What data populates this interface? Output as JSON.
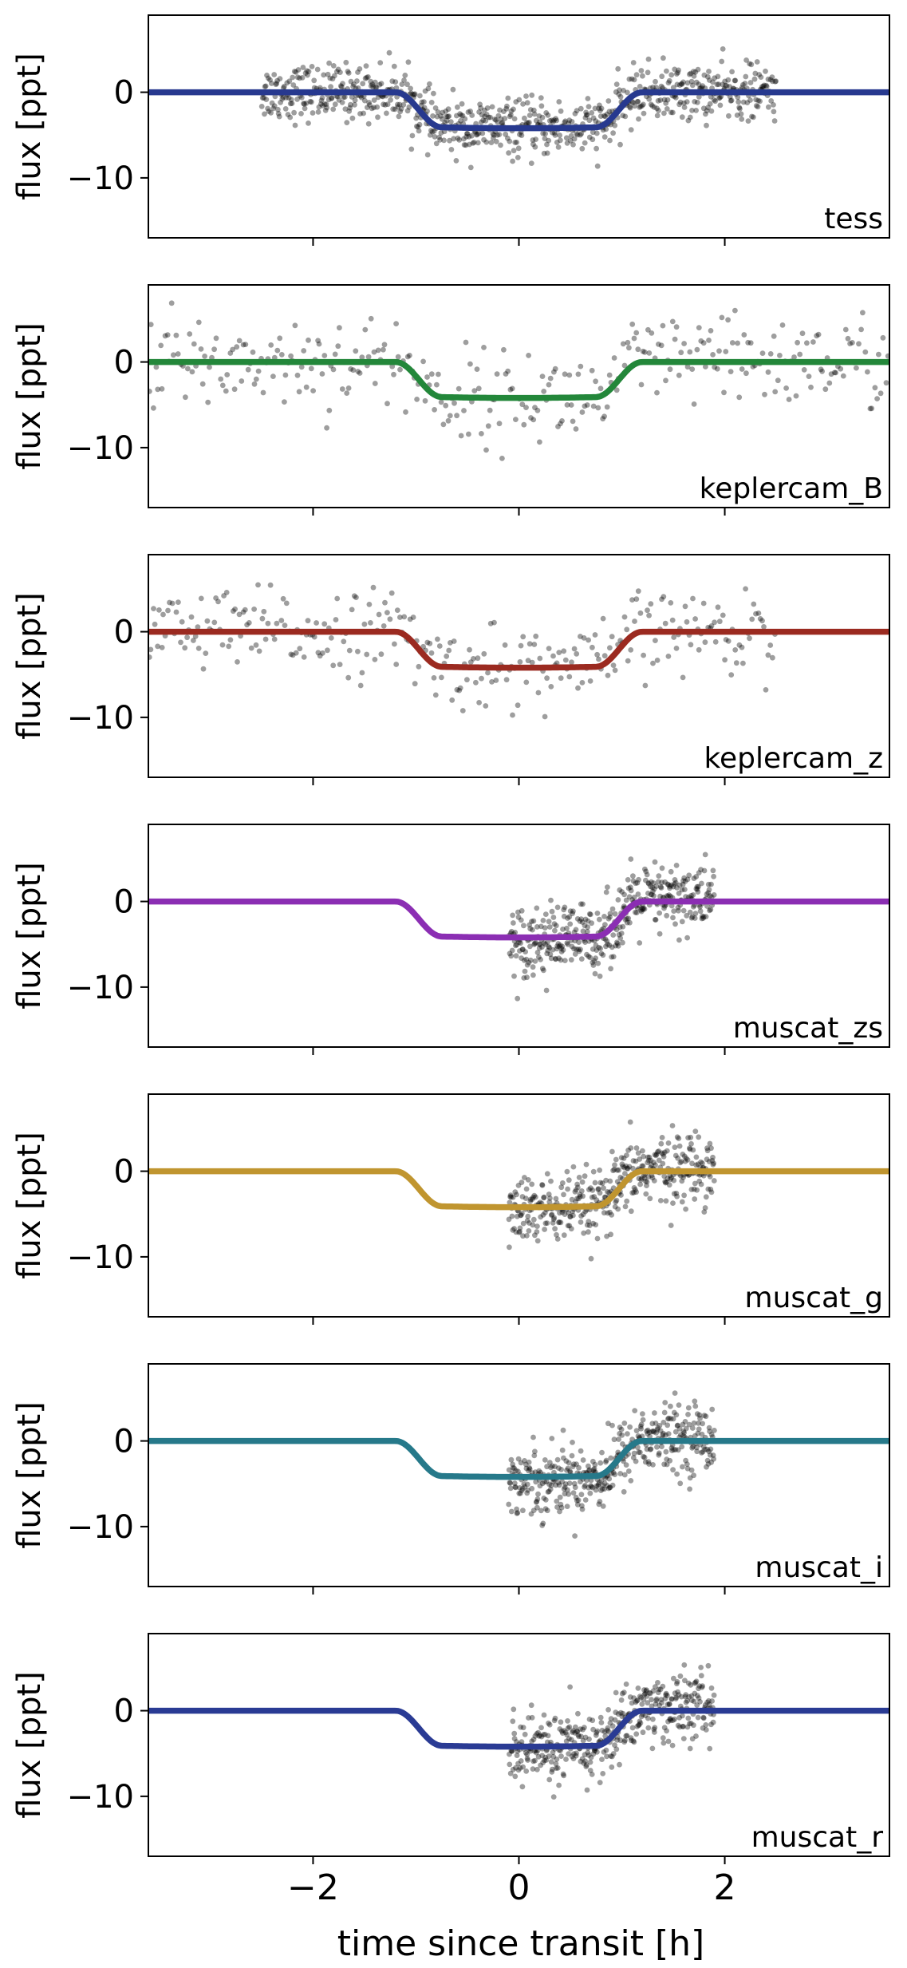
{
  "chart_data": {
    "type": "scatter",
    "layout": "7 stacked panels sharing x-axis",
    "xlabel": "time since transit [h]",
    "ylabel": "flux [ppt]",
    "xlim": [
      -3.6,
      3.6
    ],
    "ylim": [
      -17,
      9
    ],
    "xticks": [
      -2,
      0,
      2
    ],
    "xtick_labels": [
      "−2",
      "0",
      "2"
    ],
    "yticks": [
      0,
      -10
    ],
    "ytick_labels": [
      "0",
      "−10"
    ],
    "point_color": "#000000",
    "model": {
      "transit_depth_ppt": -4.2,
      "t1": -1.2,
      "t2": -0.75,
      "t3": 0.75,
      "t4": 1.2
    },
    "panels": [
      {
        "name": "tess",
        "model_color": "#27398f",
        "data_range": [
          -2.5,
          2.5
        ],
        "n_points": 800,
        "scatter_ppt": 1.6,
        "trend_ppt": 0
      },
      {
        "name": "keplercam_B",
        "model_color": "#23873a",
        "data_range": [
          -3.6,
          3.6
        ],
        "n_points": 330,
        "scatter_ppt": 2.7,
        "trend_ppt": 0
      },
      {
        "name": "keplercam_z",
        "model_color": "#9b2a20",
        "data_range": [
          -3.6,
          2.5
        ],
        "n_points": 300,
        "scatter_ppt": 2.4,
        "trend_ppt": 0
      },
      {
        "name": "muscat_zs",
        "model_color": "#8b2eb3",
        "data_range": [
          -0.1,
          1.9
        ],
        "n_points": 420,
        "scatter_ppt": 2.0,
        "trend_ppt": 3.0
      },
      {
        "name": "muscat_g",
        "model_color": "#c0952f",
        "data_range": [
          -0.1,
          1.9
        ],
        "n_points": 420,
        "scatter_ppt": 2.0,
        "trend_ppt": 3.0
      },
      {
        "name": "muscat_i",
        "model_color": "#26798a",
        "data_range": [
          -0.1,
          1.9
        ],
        "n_points": 420,
        "scatter_ppt": 2.0,
        "trend_ppt": 3.0
      },
      {
        "name": "muscat_r",
        "model_color": "#2a3b94",
        "data_range": [
          -0.1,
          1.9
        ],
        "n_points": 420,
        "scatter_ppt": 2.0,
        "trend_ppt": 3.0
      }
    ]
  }
}
